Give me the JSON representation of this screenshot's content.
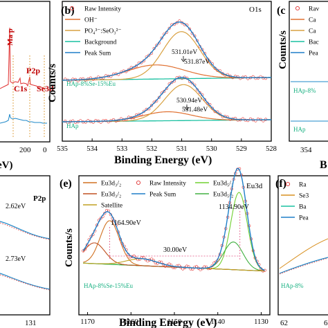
{
  "figure": {
    "left_top_ticks": [
      "200",
      "0"
    ],
    "left_top_xlabel_fragment": "eV)",
    "left_top_peaks": [
      "Ma p",
      "C1s",
      "P2p",
      "Se3d"
    ],
    "left_top_caption_fragment": "",
    "left_bottom_title": "P2p",
    "left_bottom_labels": [
      "2.62eV",
      "2.73eV"
    ],
    "left_bottom_ticks": [
      "131"
    ],
    "right_top_letter": "(c",
    "right_top_legend": [
      "Rav",
      "Ca",
      "Ca",
      "Bac",
      "Pea"
    ],
    "right_top_samples": [
      "HAp-8%",
      "HAp"
    ],
    "right_top_ticks": [
      "354"
    ],
    "right_top_xlabel_fragment": "B",
    "right_bottom_letter": "(f)",
    "right_bottom_legend": [
      "Ra",
      "Se3",
      "Ba",
      "Pea"
    ],
    "right_bottom_sample": "HAp-8%",
    "right_bottom_ticks": [
      "62",
      "6"
    ],
    "right_bottom_xlabel_fragment": "B"
  },
  "chart_data": [
    {
      "type": "line",
      "panel": "(b)",
      "title": "O1s",
      "xlabel": "Binding Energy (eV)",
      "ylabel": "Counts/s",
      "xlim": [
        535,
        528
      ],
      "x_ticks": [
        "535",
        "534",
        "533",
        "532",
        "531",
        "530",
        "529",
        "528"
      ],
      "grid": false,
      "legend_position": "top-left",
      "legend": [
        "Raw Intensity",
        "OH⁻",
        "PO₄³⁻:SeO₃²⁻",
        "Background",
        "Peak Sum"
      ],
      "samples": [
        {
          "name": "HAp-8%Se-15%Eu",
          "peaks": [
            {
              "component": "OH⁻",
              "center": 531.87,
              "label": "531.87eV"
            },
            {
              "component": "PO₄³⁻:SeO₃²⁻",
              "center": 531.01,
              "label": "531.01eV"
            }
          ]
        },
        {
          "name": "HAp",
          "peaks": [
            {
              "component": "OH⁻",
              "center": 531.48,
              "label": "531.48eV"
            },
            {
              "component": "PO₄³⁻:SeO₃²⁻",
              "center": 530.94,
              "label": "530.94eV"
            }
          ]
        }
      ]
    },
    {
      "type": "line",
      "panel": "(e)",
      "title": "Eu3d",
      "xlabel": "Binding Energy (eV)",
      "ylabel": "Counts/s",
      "xlim": [
        1172,
        1128
      ],
      "x_ticks": [
        "1170",
        "1160",
        "1150",
        "1140",
        "1130"
      ],
      "grid": false,
      "legend_position": "top",
      "legend": [
        "Eu3d₃/₂",
        "Raw Intensity",
        "Eu3d₅/₂",
        "Eu3d₃/₂",
        "Peak Sum",
        "Eu3d₅/₂",
        "Satellite"
      ],
      "samples": [
        {
          "name": "HAp-8%Se-15%Eu",
          "peaks": [
            {
              "component": "Eu3d₃/₂",
              "center": 1164.9,
              "label": "1164.90eV"
            },
            {
              "component": "Eu3d₅/₂",
              "center": 1134.9,
              "label": "1134.90eV"
            }
          ]
        }
      ],
      "annotations": [
        {
          "text": "30.00eV",
          "from": 1164.9,
          "to": 1134.9
        }
      ]
    }
  ]
}
